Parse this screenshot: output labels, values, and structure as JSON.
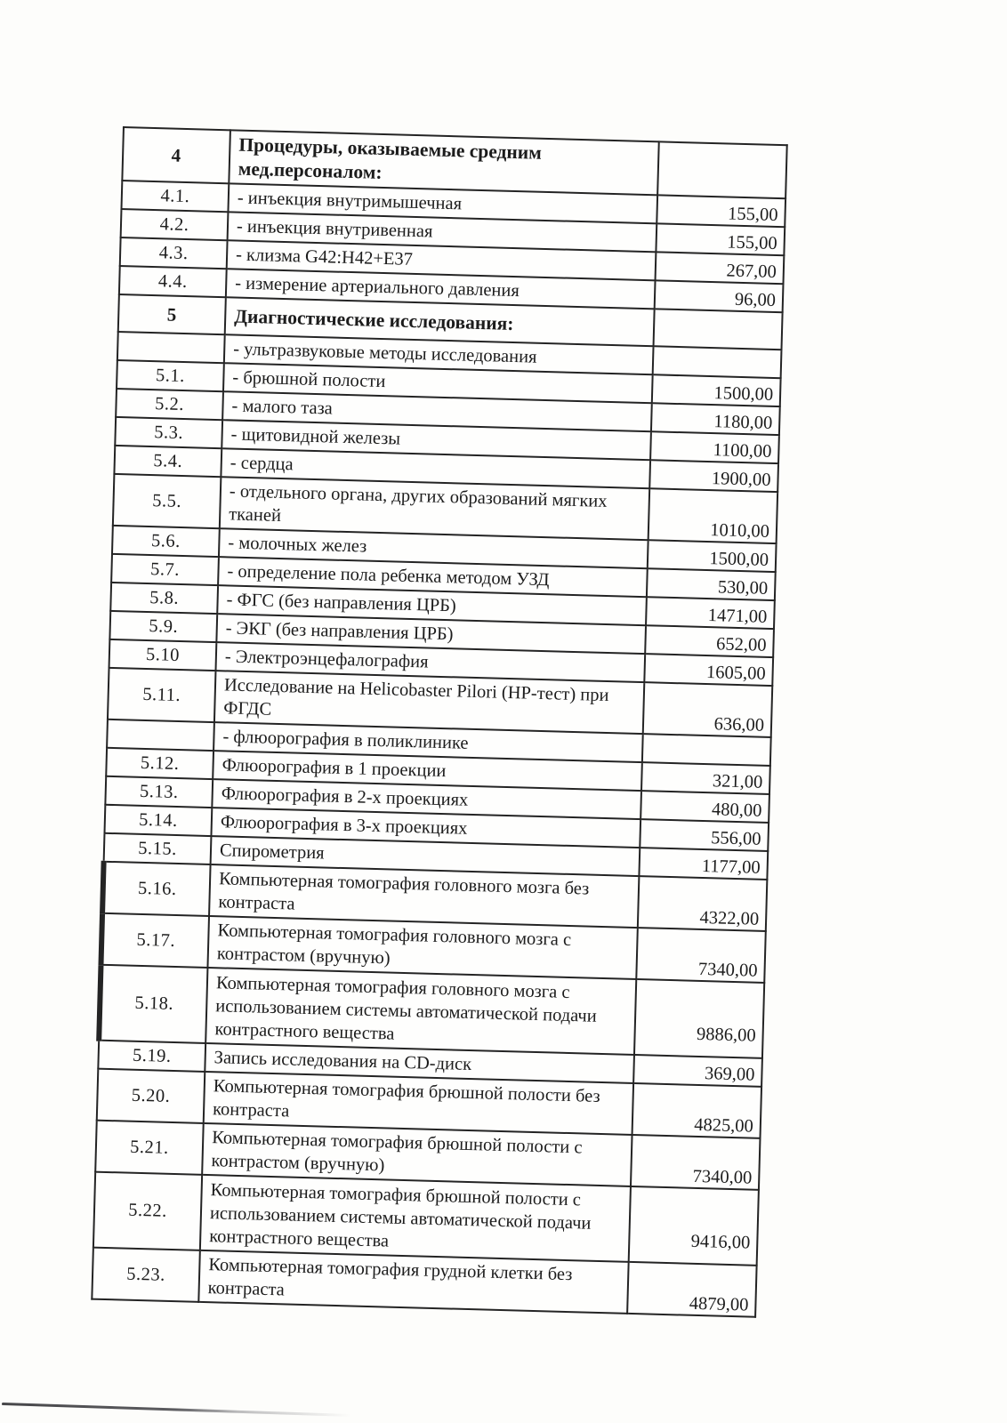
{
  "document": {
    "kind": "Scanned medical services price list (Russian)",
    "language": "ru",
    "columns": {
      "number": "",
      "service": "",
      "price": ""
    }
  },
  "table": {
    "rows": [
      {
        "num": "4",
        "desc": "Процедуры, оказываемые средним\nмед.персоналом:",
        "price": "",
        "header": true
      },
      {
        "num": "4.1.",
        "desc": "- инъекция внутримышечная",
        "price": "155,00"
      },
      {
        "num": "4.2.",
        "desc": "- инъекция внутривенная",
        "price": "155,00"
      },
      {
        "num": "4.3.",
        "desc": "- клизма G42:H42+E37",
        "price": "267,00"
      },
      {
        "num": "4.4.",
        "desc": "- измерение артериального давления",
        "price": "96,00"
      },
      {
        "num": "5",
        "desc": "Диагностические исследования:",
        "price": "",
        "header": true
      },
      {
        "num": "",
        "desc": "- ультразвуковые методы исследования",
        "price": ""
      },
      {
        "num": "5.1.",
        "desc": "- брюшной полости",
        "price": "1500,00"
      },
      {
        "num": "5.2.",
        "desc": "- малого таза",
        "price": "1180,00"
      },
      {
        "num": "5.3.",
        "desc": "- щитовидной железы",
        "price": "1100,00"
      },
      {
        "num": "5.4.",
        "desc": "- сердца",
        "price": "1900,00"
      },
      {
        "num": "5.5.",
        "desc": "- отдельного органа, других образований мягких\nтканей",
        "price": "1010,00"
      },
      {
        "num": "5.6.",
        "desc": "- молочных желез",
        "price": "1500,00"
      },
      {
        "num": "5.7.",
        "desc": "- определение пола ребенка методом УЗД",
        "price": "530,00"
      },
      {
        "num": "5.8.",
        "desc": "- ФГС (без направления ЦРБ)",
        "price": "1471,00"
      },
      {
        "num": "5.9.",
        "desc": "- ЭКГ (без направления ЦРБ)",
        "price": "652,00"
      },
      {
        "num": "5.10",
        "desc": "- Электроэнцефалография",
        "price": "1605,00"
      },
      {
        "num": "5.11.",
        "desc": "Исследование на Helicobaster Pilori (НР-тест) при\nФГДС",
        "price": "636,00"
      },
      {
        "num": "",
        "desc": "- флюорография в поликлинике",
        "price": ""
      },
      {
        "num": "5.12.",
        "desc": "Флюорография в 1 проекции",
        "price": "321,00"
      },
      {
        "num": "5.13.",
        "desc": "Флюорография в 2-х проекциях",
        "price": "480,00"
      },
      {
        "num": "5.14.",
        "desc": "Флюорография в 3-х проекциях",
        "price": "556,00"
      },
      {
        "num": "5.15.",
        "desc": "Спирометрия",
        "price": "1177,00"
      },
      {
        "num": "5.16.",
        "desc": "Компьютерная томография головного мозга без\nконтраста",
        "price": "4322,00"
      },
      {
        "num": "5.17.",
        "desc": "Компьютерная томография головного мозга с\nконтрастом (вручную)",
        "price": "7340,00"
      },
      {
        "num": "5.18.",
        "desc": "Компьютерная томография головного мозга с\nиспользованием системы автоматической подачи\nконтрастного вещества",
        "price": "9886,00"
      },
      {
        "num": "5.19.",
        "desc": "Запись исследования на CD-диск",
        "price": "369,00"
      },
      {
        "num": "5.20.",
        "desc": "Компьютерная томография брюшной полости без\nконтраста",
        "price": "4825,00"
      },
      {
        "num": "5.21.",
        "desc": "Компьютерная томография брюшной полости с\nконтрастом (вручную)",
        "price": "7340,00"
      },
      {
        "num": "5.22.",
        "desc": "Компьютерная томография брюшной полости с\nиспользованием системы автоматической подачи\nконтрастного вещества",
        "price": "9416,00"
      },
      {
        "num": "5.23.",
        "desc": "Компьютерная томография грудной клетки без\nконтраста",
        "price": "4879,00"
      }
    ]
  }
}
